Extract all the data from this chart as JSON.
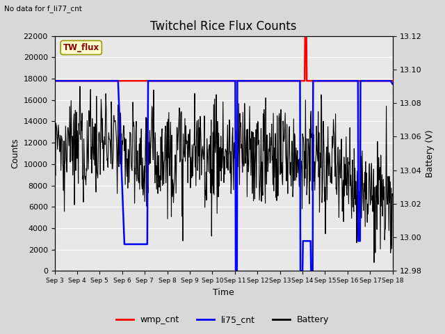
{
  "title": "Twitchel Rice Flux Counts",
  "subtitle": "No data for f_li77_cnt",
  "box_label": "TW_flux",
  "xlabel": "Time",
  "ylabel_left": "Counts",
  "ylabel_right": "Battery (V)",
  "ylim_left": [
    0,
    22000
  ],
  "ylim_right": [
    12.98,
    13.12
  ],
  "yticks_left": [
    0,
    2000,
    4000,
    6000,
    8000,
    10000,
    12000,
    14000,
    16000,
    18000,
    20000,
    22000
  ],
  "yticks_right": [
    12.98,
    13.0,
    13.02,
    13.04,
    13.06,
    13.08,
    13.1,
    13.12
  ],
  "xtick_labels": [
    "Sep 3",
    "Sep 4",
    "Sep 5",
    "Sep 6",
    "Sep 7",
    "Sep 8",
    "Sep 9",
    "Sep 10",
    "Sep 11",
    "Sep 12",
    "Sep 13",
    "Sep 14",
    "Sep 15",
    "Sep 16",
    "Sep 17",
    "Sep 18"
  ],
  "bg_color": "#d8d8d8",
  "plot_bg_color": "#e8e8e8",
  "wmp_color": "red",
  "li75_color": "blue",
  "battery_color": "black",
  "legend_items": [
    "wmp_cnt",
    "li75_cnt",
    "Battery"
  ],
  "figsize": [
    6.4,
    4.8
  ],
  "dpi": 100
}
